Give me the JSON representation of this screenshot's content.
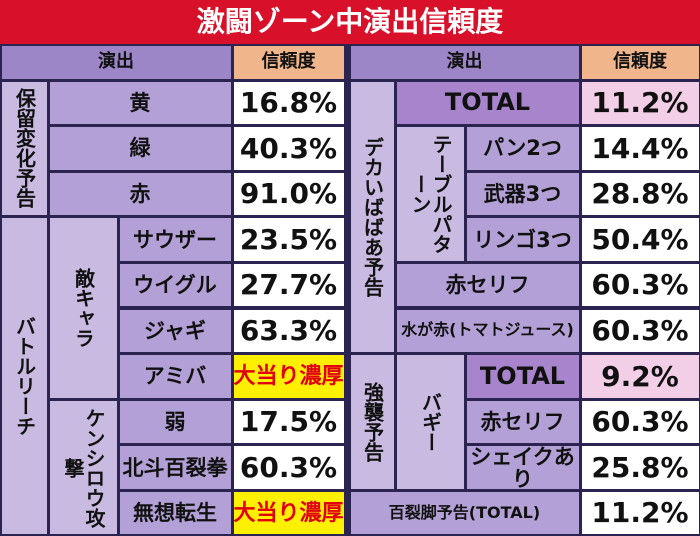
{
  "title": "激闘ゾーン中演出信頼度",
  "left": {
    "header": {
      "effect": "演出",
      "reliability": "信頼度"
    },
    "groups": [
      {
        "name": "保留変化予告",
        "rows": [
          {
            "label": "黄",
            "value": "16.8%"
          },
          {
            "label": "緑",
            "value": "40.3%"
          },
          {
            "label": "赤",
            "value": "91.0%"
          }
        ]
      },
      {
        "name": "バトルリーチ",
        "subgroups": [
          {
            "name": "敵キャラ",
            "rows": [
              {
                "label": "サウザー",
                "value": "23.5%"
              },
              {
                "label": "ウイグル",
                "value": "27.7%"
              },
              {
                "label": "ジャギ",
                "value": "63.3%"
              },
              {
                "label": "アミバ",
                "value": "大当り濃厚"
              }
            ]
          },
          {
            "name": "ケンシロウ攻撃",
            "rows": [
              {
                "label": "弱",
                "value": "17.5%"
              },
              {
                "label": "北斗百裂拳",
                "value": "60.3%"
              },
              {
                "label": "無想転生",
                "value": "大当り濃厚"
              }
            ]
          }
        ]
      }
    ]
  },
  "right": {
    "header": {
      "effect": "演出",
      "reliability": "信頼度"
    },
    "groups": [
      {
        "name": "デカいばばあ予告",
        "total": {
          "label": "TOTAL",
          "value": "11.2%"
        },
        "pattern": {
          "name": "テーブルパターン",
          "rows": [
            {
              "label": "パン2つ",
              "value": "14.4%"
            },
            {
              "label": "武器3つ",
              "value": "28.8%"
            },
            {
              "label": "リンゴ3つ",
              "value": "50.4%"
            }
          ]
        },
        "others": [
          {
            "label": "赤セリフ",
            "value": "60.3%"
          },
          {
            "label": "水が赤(トマトジュース)",
            "value": "60.3%"
          }
        ]
      },
      {
        "name": "強襲予告",
        "sub": "バギー",
        "total": {
          "label": "TOTAL",
          "value": "9.2%"
        },
        "rows": [
          {
            "label": "赤セリフ",
            "value": "60.3%"
          },
          {
            "label": "シェイクあり",
            "value": "25.8%"
          }
        ]
      }
    ],
    "last": {
      "label": "百裂脚予告(TOTAL)",
      "value": "11.2%"
    }
  }
}
